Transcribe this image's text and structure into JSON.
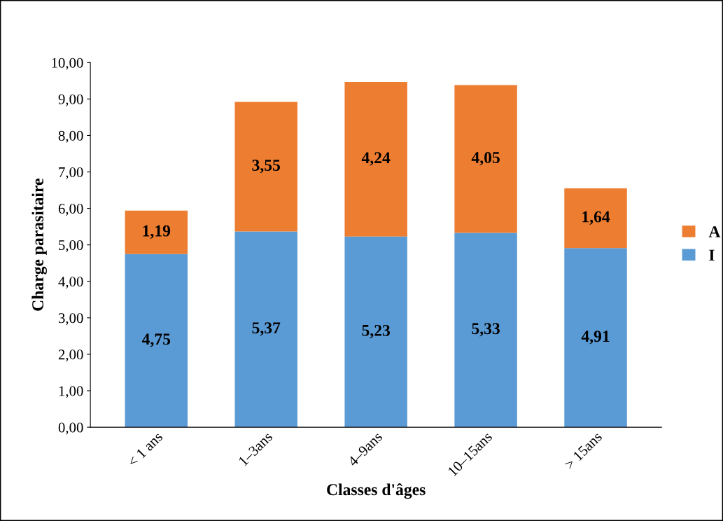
{
  "chart_data": {
    "type": "bar",
    "stacked": true,
    "xlabel": "Classes d'âges",
    "ylabel": "Charge parasitaire",
    "categories": [
      "< 1 ans",
      "1–3ans",
      "4–9ans",
      "10–15ans",
      "> 15ans"
    ],
    "series": [
      {
        "name": "I",
        "color": "#5b9bd5",
        "values": [
          4.75,
          5.37,
          5.23,
          5.33,
          4.91
        ],
        "value_labels": [
          "4,75",
          "5,37",
          "5,23",
          "5,33",
          "4,91"
        ]
      },
      {
        "name": "A",
        "color": "#ed7d31",
        "values": [
          1.19,
          3.55,
          4.24,
          4.05,
          1.64
        ],
        "value_labels": [
          "1,19",
          "3,55",
          "4,24",
          "4,05",
          "1,64"
        ]
      }
    ],
    "ylim": [
      0,
      10
    ],
    "yticks": [
      {
        "value": 0,
        "label": "0,00"
      },
      {
        "value": 1,
        "label": "1,00"
      },
      {
        "value": 2,
        "label": "2,00"
      },
      {
        "value": 3,
        "label": "3,00"
      },
      {
        "value": 4,
        "label": "4,00"
      },
      {
        "value": 5,
        "label": "5,00"
      },
      {
        "value": 6,
        "label": "6,00"
      },
      {
        "value": 7,
        "label": "7,00"
      },
      {
        "value": 8,
        "label": "8,00"
      },
      {
        "value": 9,
        "label": "9,00"
      },
      {
        "value": 10,
        "label": "10,00"
      }
    ],
    "grid": false,
    "legend": "right"
  }
}
